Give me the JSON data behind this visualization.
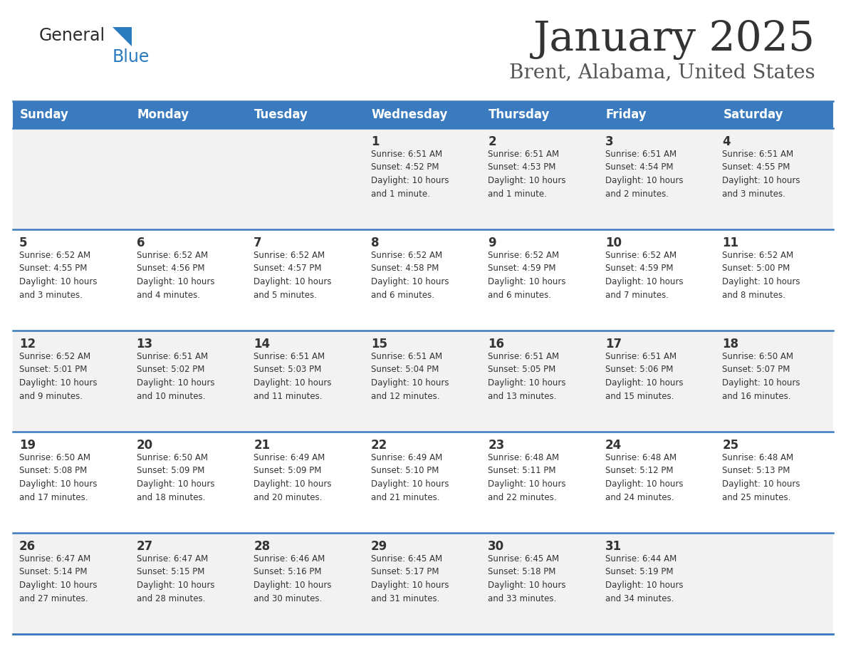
{
  "title": "January 2025",
  "subtitle": "Brent, Alabama, United States",
  "header_bg_color": "#3A7BBF",
  "header_text_color": "#FFFFFF",
  "day_names": [
    "Sunday",
    "Monday",
    "Tuesday",
    "Wednesday",
    "Thursday",
    "Friday",
    "Saturday"
  ],
  "row_bg_colors": [
    "#F2F2F2",
    "#FFFFFF",
    "#F2F2F2",
    "#FFFFFF",
    "#F2F2F2"
  ],
  "cell_border_color": "#3A7BBF",
  "title_color": "#333333",
  "subtitle_color": "#555555",
  "info_text_color": "#333333",
  "calendar": [
    [
      {
        "day": "",
        "info": ""
      },
      {
        "day": "",
        "info": ""
      },
      {
        "day": "",
        "info": ""
      },
      {
        "day": "1",
        "info": "Sunrise: 6:51 AM\nSunset: 4:52 PM\nDaylight: 10 hours\nand 1 minute."
      },
      {
        "day": "2",
        "info": "Sunrise: 6:51 AM\nSunset: 4:53 PM\nDaylight: 10 hours\nand 1 minute."
      },
      {
        "day": "3",
        "info": "Sunrise: 6:51 AM\nSunset: 4:54 PM\nDaylight: 10 hours\nand 2 minutes."
      },
      {
        "day": "4",
        "info": "Sunrise: 6:51 AM\nSunset: 4:55 PM\nDaylight: 10 hours\nand 3 minutes."
      }
    ],
    [
      {
        "day": "5",
        "info": "Sunrise: 6:52 AM\nSunset: 4:55 PM\nDaylight: 10 hours\nand 3 minutes."
      },
      {
        "day": "6",
        "info": "Sunrise: 6:52 AM\nSunset: 4:56 PM\nDaylight: 10 hours\nand 4 minutes."
      },
      {
        "day": "7",
        "info": "Sunrise: 6:52 AM\nSunset: 4:57 PM\nDaylight: 10 hours\nand 5 minutes."
      },
      {
        "day": "8",
        "info": "Sunrise: 6:52 AM\nSunset: 4:58 PM\nDaylight: 10 hours\nand 6 minutes."
      },
      {
        "day": "9",
        "info": "Sunrise: 6:52 AM\nSunset: 4:59 PM\nDaylight: 10 hours\nand 6 minutes."
      },
      {
        "day": "10",
        "info": "Sunrise: 6:52 AM\nSunset: 4:59 PM\nDaylight: 10 hours\nand 7 minutes."
      },
      {
        "day": "11",
        "info": "Sunrise: 6:52 AM\nSunset: 5:00 PM\nDaylight: 10 hours\nand 8 minutes."
      }
    ],
    [
      {
        "day": "12",
        "info": "Sunrise: 6:52 AM\nSunset: 5:01 PM\nDaylight: 10 hours\nand 9 minutes."
      },
      {
        "day": "13",
        "info": "Sunrise: 6:51 AM\nSunset: 5:02 PM\nDaylight: 10 hours\nand 10 minutes."
      },
      {
        "day": "14",
        "info": "Sunrise: 6:51 AM\nSunset: 5:03 PM\nDaylight: 10 hours\nand 11 minutes."
      },
      {
        "day": "15",
        "info": "Sunrise: 6:51 AM\nSunset: 5:04 PM\nDaylight: 10 hours\nand 12 minutes."
      },
      {
        "day": "16",
        "info": "Sunrise: 6:51 AM\nSunset: 5:05 PM\nDaylight: 10 hours\nand 13 minutes."
      },
      {
        "day": "17",
        "info": "Sunrise: 6:51 AM\nSunset: 5:06 PM\nDaylight: 10 hours\nand 15 minutes."
      },
      {
        "day": "18",
        "info": "Sunrise: 6:50 AM\nSunset: 5:07 PM\nDaylight: 10 hours\nand 16 minutes."
      }
    ],
    [
      {
        "day": "19",
        "info": "Sunrise: 6:50 AM\nSunset: 5:08 PM\nDaylight: 10 hours\nand 17 minutes."
      },
      {
        "day": "20",
        "info": "Sunrise: 6:50 AM\nSunset: 5:09 PM\nDaylight: 10 hours\nand 18 minutes."
      },
      {
        "day": "21",
        "info": "Sunrise: 6:49 AM\nSunset: 5:09 PM\nDaylight: 10 hours\nand 20 minutes."
      },
      {
        "day": "22",
        "info": "Sunrise: 6:49 AM\nSunset: 5:10 PM\nDaylight: 10 hours\nand 21 minutes."
      },
      {
        "day": "23",
        "info": "Sunrise: 6:48 AM\nSunset: 5:11 PM\nDaylight: 10 hours\nand 22 minutes."
      },
      {
        "day": "24",
        "info": "Sunrise: 6:48 AM\nSunset: 5:12 PM\nDaylight: 10 hours\nand 24 minutes."
      },
      {
        "day": "25",
        "info": "Sunrise: 6:48 AM\nSunset: 5:13 PM\nDaylight: 10 hours\nand 25 minutes."
      }
    ],
    [
      {
        "day": "26",
        "info": "Sunrise: 6:47 AM\nSunset: 5:14 PM\nDaylight: 10 hours\nand 27 minutes."
      },
      {
        "day": "27",
        "info": "Sunrise: 6:47 AM\nSunset: 5:15 PM\nDaylight: 10 hours\nand 28 minutes."
      },
      {
        "day": "28",
        "info": "Sunrise: 6:46 AM\nSunset: 5:16 PM\nDaylight: 10 hours\nand 30 minutes."
      },
      {
        "day": "29",
        "info": "Sunrise: 6:45 AM\nSunset: 5:17 PM\nDaylight: 10 hours\nand 31 minutes."
      },
      {
        "day": "30",
        "info": "Sunrise: 6:45 AM\nSunset: 5:18 PM\nDaylight: 10 hours\nand 33 minutes."
      },
      {
        "day": "31",
        "info": "Sunrise: 6:44 AM\nSunset: 5:19 PM\nDaylight: 10 hours\nand 34 minutes."
      },
      {
        "day": "",
        "info": ""
      }
    ]
  ]
}
